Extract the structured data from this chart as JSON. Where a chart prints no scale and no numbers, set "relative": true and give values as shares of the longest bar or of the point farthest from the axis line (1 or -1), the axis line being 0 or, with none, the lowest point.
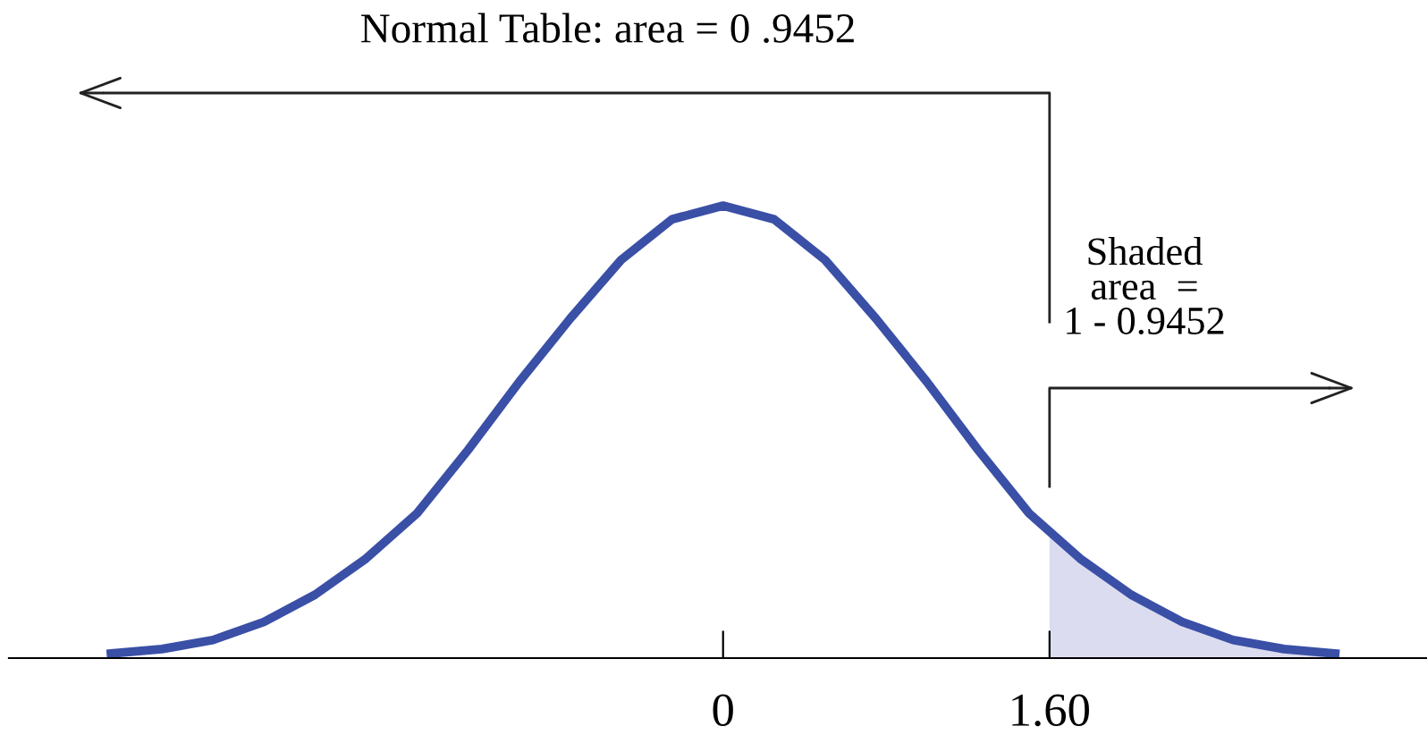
{
  "chart_data": {
    "type": "line",
    "title": "Normal Table: area = 0 .9452",
    "relative": true,
    "xlim": [
      -3.5,
      3.45
    ],
    "xticks": [
      0,
      {
        "value": 1.6,
        "label": "1.60"
      }
    ],
    "grid": false,
    "legend": false,
    "marker": "none",
    "line_style": "solid",
    "annotations": [
      "Shaded\narea  =\n1 - 0.9452"
    ],
    "series": [
      {
        "color": "#3a4fa6",
        "x": [
          -3,
          -2.75,
          -2.5,
          -2.25,
          -2,
          -1.75,
          -1.5,
          -1.25,
          -1,
          -0.75,
          -0.5,
          -0.25,
          0,
          0.25,
          0.5,
          0.75,
          1,
          1.25,
          1.5,
          1.6,
          1.75,
          2,
          2.25,
          2.5,
          2.75,
          3
        ],
        "values": [
          0.01,
          0.02,
          0.04,
          0.08,
          0.14,
          0.22,
          0.32,
          0.46,
          0.61,
          0.75,
          0.88,
          0.97,
          1,
          0.97,
          0.88,
          0.75,
          0.61,
          0.46,
          0.32,
          0.28,
          0.22,
          0.14,
          0.08,
          0.04,
          0.02,
          0.01
        ]
      },
      {
        "type": "area",
        "color": "#dcdcf0",
        "x": [
          1.6,
          1.75,
          2,
          2.25,
          2.5,
          2.75,
          3
        ],
        "values": [
          0.28,
          0.22,
          0.14,
          0.08,
          0.04,
          0.02,
          0.01
        ]
      }
    ]
  }
}
